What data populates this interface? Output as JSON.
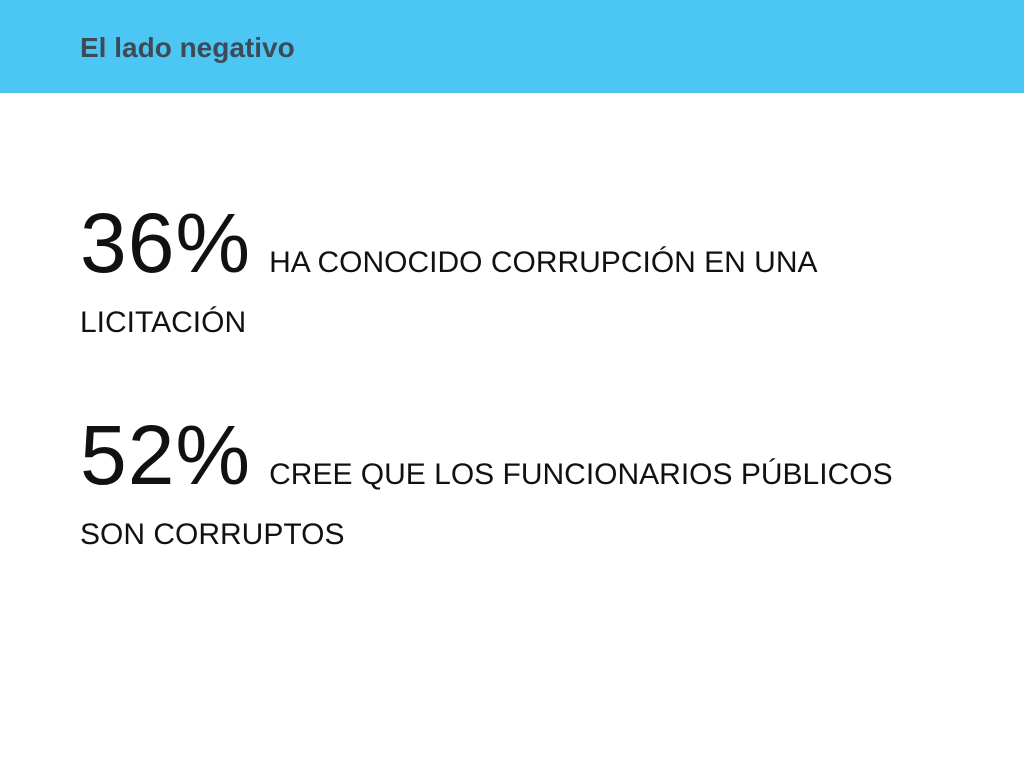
{
  "slide": {
    "title": "El lado negativo",
    "header_color": "#4cc7f3"
  },
  "stats": [
    {
      "value": "36%",
      "text_line1": "HA CONOCIDO CORRUPCIÓN EN UNA",
      "text_line2": "LICITACIÓN"
    },
    {
      "value": "52%",
      "text_line1": "CREE QUE LOS FUNCIONARIOS PÚBLICOS",
      "text_line2": "SON CORRUPTOS"
    }
  ]
}
